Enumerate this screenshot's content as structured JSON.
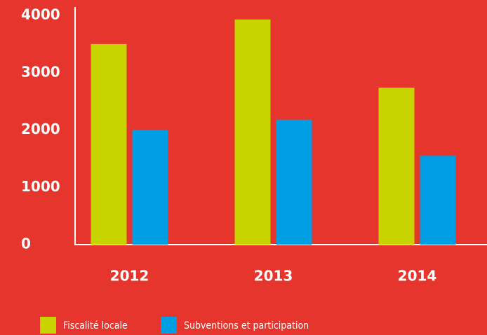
{
  "chart_data": {
    "type": "bar",
    "categories": [
      "2012",
      "2013",
      "2014"
    ],
    "series": [
      {
        "name": "Fiscalité locale",
        "color": "#c8d400",
        "values": [
          3500,
          3930,
          2740
        ]
      },
      {
        "name": "Subventions et participation",
        "color": "#009fe3",
        "values": [
          2000,
          2180,
          1550
        ]
      }
    ],
    "ylim": [
      0,
      4000
    ],
    "yticks": [
      0,
      1000,
      2000,
      3000,
      4000
    ],
    "grid": false
  }
}
